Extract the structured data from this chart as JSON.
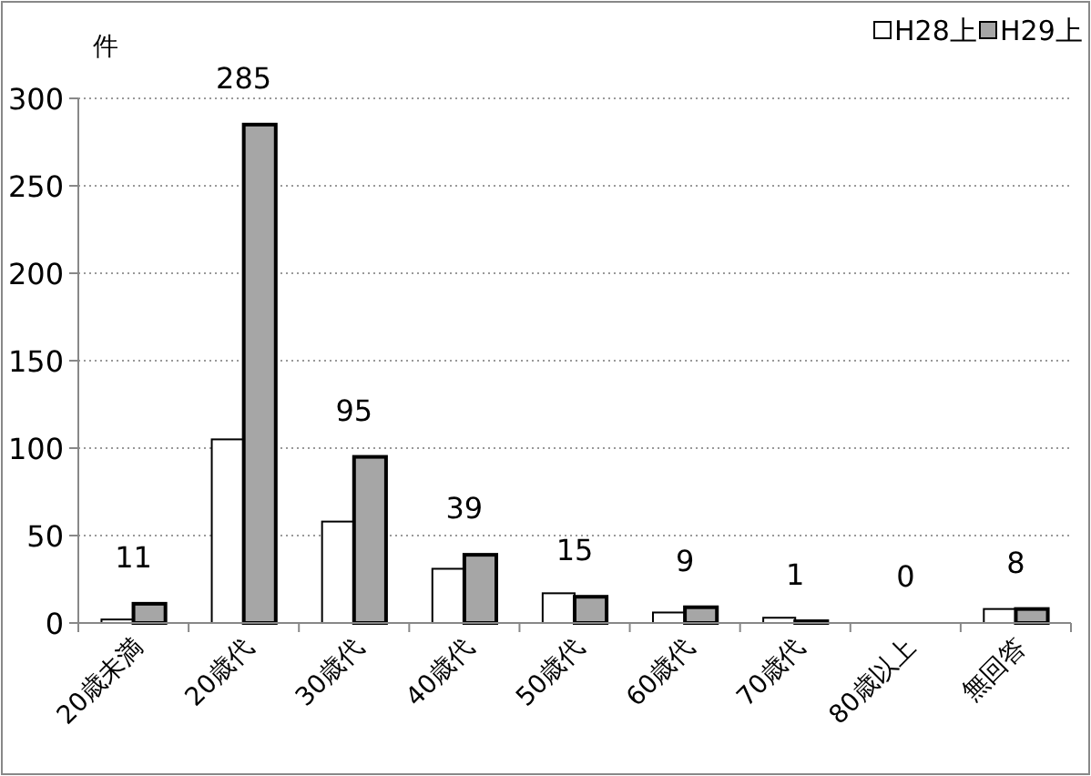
{
  "chart_data": {
    "type": "bar",
    "ylabel": "件",
    "categories": [
      "20歳未満",
      "20歳代",
      "30歳代",
      "40歳代",
      "50歳代",
      "60歳代",
      "70歳代",
      "80歳以上",
      "無回答"
    ],
    "series": [
      {
        "name": "H28上",
        "color": "#ffffff",
        "values": [
          2,
          105,
          58,
          31,
          17,
          6,
          3,
          0,
          8
        ]
      },
      {
        "name": "H29上",
        "color": "#a6a6a6",
        "values": [
          11,
          285,
          95,
          39,
          15,
          9,
          1,
          0,
          8
        ],
        "value_labels": [
          "11",
          "285",
          "95",
          "39",
          "15",
          "9",
          "1",
          "0",
          "8"
        ]
      }
    ],
    "ylim": [
      0,
      300
    ],
    "yticks": [
      0,
      50,
      100,
      150,
      200,
      250,
      300
    ],
    "grid": "y",
    "legend": "top right"
  }
}
